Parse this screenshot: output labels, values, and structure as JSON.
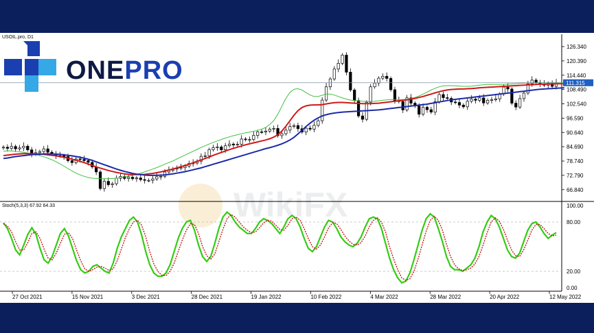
{
  "header": {
    "symbol_label": "USOIL.pro, D1",
    "stoch_label": "Stoch(5,3,3) 67.92 64.33"
  },
  "logo": {
    "text_left": "ONE",
    "text_right": "PRO",
    "icon_name": "onepro-cross-logo-icon"
  },
  "watermark": {
    "text": "WikiFX"
  },
  "colors": {
    "background_band": "#0b1f5c",
    "candle_up": "#ffffff",
    "candle_down": "#000000",
    "ma_fast": "#3fbf3f",
    "ma_mid": "#d01818",
    "ma_slow": "#1a2aa8",
    "stoch_main": "#33cc11",
    "stoch_signal": "#c01a1a",
    "price_badge": "#1f5fbf"
  },
  "chart_data": [
    {
      "type": "candlestick",
      "title": "USOIL.pro, D1",
      "y_ticks": [
        "126.340",
        "120.390",
        "114.440",
        "108.490",
        "102.540",
        "96.590",
        "90.640",
        "84.690",
        "78.740",
        "72.790",
        "66.840"
      ],
      "current_price_label": "111.315",
      "current_price": 111.3,
      "ylim": [
        62.5,
        130.9
      ],
      "x_labels": [
        "27 Oct 2021",
        "15 Nov 2021",
        "3 Dec 2021",
        "28 Dec 2021",
        "19 Jan 2022",
        "10 Feb 2022",
        "4 Mar 2022",
        "28 Mar 2022",
        "20 Apr 2022",
        "12 May 2022"
      ],
      "close": [
        84.5,
        84.0,
        84.8,
        83.8,
        84.2,
        84.9,
        83.4,
        81.6,
        82.2,
        82.7,
        83.8,
        82.4,
        81.7,
        80.9,
        81.0,
        80.6,
        78.9,
        78.1,
        79.6,
        79.4,
        78.9,
        78.2,
        76.3,
        74.2,
        67.3,
        70.3,
        68.9,
        69.3,
        71.6,
        72.3,
        71.5,
        72.0,
        71.4,
        71.7,
        71.0,
        70.7,
        70.7,
        71.3,
        72.2,
        72.4,
        74.2,
        74.9,
        75.5,
        75.7,
        76.0,
        76.6,
        77.7,
        77.9,
        78.7,
        80.7,
        80.9,
        83.5,
        84.3,
        84.6,
        83.4,
        85.1,
        85.8,
        85.4,
        85.7,
        87.9,
        87.7,
        87.7,
        89.4,
        90.9,
        90.8,
        91.2,
        92.0,
        92.3,
        89.3,
        90.1,
        91.6,
        93.1,
        93.5,
        92.2,
        90.8,
        92.4,
        92.0,
        93.6,
        95.5,
        104.1,
        109.6,
        112.9,
        117.0,
        119.4,
        122.8,
        115.7,
        108.3,
        103.9,
        97.5,
        96.1,
        103.2,
        109.6,
        111.2,
        113.2,
        114.0,
        113.1,
        108.4,
        103.9,
        103.5,
        100.0,
        105.0,
        102.8,
        101.6,
        98.2,
        101.1,
        100.1,
        99.1,
        103.4,
        106.4,
        105.1,
        104.8,
        103.3,
        103.1,
        102.0,
        101.3,
        103.6,
        104.5,
        104.0,
        105.0,
        102.9,
        104.0,
        104.2,
        104.6,
        106.6,
        109.5,
        108.7,
        102.8,
        101.2,
        104.7,
        107.0,
        110.9,
        112.4,
        111.3,
        110.8,
        110.3,
        111.1,
        109.8,
        111.3
      ],
      "series": [
        {
          "name": "MA fast",
          "values": [
            82.8,
            83.0,
            82.9,
            82.8,
            82.6,
            82.4,
            82.1,
            81.8,
            81.4,
            81.0,
            80.5,
            79.9,
            79.3,
            78.5,
            77.6,
            76.6,
            75.6,
            74.6,
            73.7,
            73.0,
            72.4,
            71.9,
            71.6,
            71.5,
            71.4,
            71.4,
            71.4,
            71.5,
            71.6,
            71.8,
            72.1,
            72.4,
            72.8,
            73.2,
            73.7,
            74.2,
            74.8,
            75.4,
            76.0,
            76.7,
            77.4,
            78.1,
            78.8,
            79.6,
            80.4,
            81.2,
            82.0,
            82.8,
            83.6,
            84.4,
            85.1,
            85.8,
            86.5,
            87.1,
            87.7,
            88.3,
            88.8,
            89.3,
            89.7,
            90.1,
            90.5,
            90.8,
            91.1,
            91.5,
            92.0,
            92.7,
            93.9,
            95.6,
            98.2,
            101.5,
            104.8,
            107.3,
            108.6,
            108.8,
            108.3,
            107.2,
            106.2,
            105.6,
            105.6,
            106.1,
            106.6,
            106.6,
            106.2,
            105.6,
            105.0,
            104.5,
            104.1,
            103.9,
            103.7,
            103.6,
            103.5,
            103.5,
            103.6,
            103.8,
            104.0,
            104.2,
            104.3,
            104.3,
            104.3,
            104.3,
            104.4,
            104.7,
            105.2,
            105.8,
            106.6,
            107.4,
            108.3,
            109.0,
            109.6,
            110.0,
            110.1,
            110.1,
            110.0,
            109.9,
            109.8,
            109.8,
            109.9,
            110.1,
            110.3,
            110.5,
            110.6,
            110.6,
            110.6,
            110.6,
            110.6,
            110.7,
            110.8,
            110.9,
            111.0,
            111.1,
            111.2,
            111.3,
            111.3,
            111.3,
            111.3,
            111.3,
            111.3,
            111.3,
            111.3,
            111.3
          ]
        },
        {
          "name": "MA mid",
          "values": [
            81.0,
            81.2,
            81.4,
            81.6,
            81.7,
            81.8,
            81.8,
            81.8,
            81.7,
            81.6,
            81.5,
            81.3,
            81.1,
            80.9,
            80.6,
            80.3,
            79.9,
            79.5,
            79.1,
            78.6,
            78.1,
            77.5,
            76.9,
            76.3,
            75.8,
            75.3,
            74.8,
            74.4,
            74.0,
            73.7,
            73.4,
            73.2,
            73.1,
            73.1,
            73.1,
            73.2,
            73.4,
            73.6,
            73.9,
            74.2,
            74.6,
            75.0,
            75.4,
            75.9,
            76.4,
            76.9,
            77.4,
            78.0,
            78.6,
            79.2,
            79.8,
            80.4,
            81.1,
            81.7,
            82.3,
            82.9,
            83.5,
            84.0,
            84.5,
            85.0,
            85.5,
            85.9,
            86.3,
            86.7,
            87.1,
            87.5,
            88.0,
            88.7,
            89.7,
            91.2,
            93.2,
            95.5,
            97.8,
            99.7,
            101.0,
            101.7,
            102.0,
            102.1,
            102.1,
            102.2,
            102.5,
            102.8,
            103.0,
            103.1,
            103.1,
            103.0,
            102.9,
            102.8,
            102.7,
            102.6,
            102.6,
            102.6,
            102.7,
            102.8,
            103.0,
            103.2,
            103.4,
            103.6,
            103.8,
            104.0,
            104.2,
            104.5,
            104.8,
            105.2,
            105.6,
            106.1,
            106.6,
            107.1,
            107.6,
            108.0,
            108.3,
            108.5,
            108.6,
            108.7,
            108.7,
            108.8,
            108.9,
            109.0,
            109.2,
            109.3,
            109.4,
            109.5,
            109.6,
            109.7,
            109.8,
            109.9,
            110.0,
            110.1,
            110.2,
            110.3,
            110.4,
            110.5,
            110.6,
            110.7,
            110.7,
            110.8,
            110.8,
            110.9,
            110.9,
            110.9
          ]
        },
        {
          "name": "MA slow",
          "values": [
            79.8,
            80.0,
            80.3,
            80.6,
            80.8,
            81.0,
            81.2,
            81.4,
            81.5,
            81.6,
            81.7,
            81.7,
            81.7,
            81.6,
            81.5,
            81.3,
            81.1,
            80.9,
            80.6,
            80.3,
            79.9,
            79.5,
            79.0,
            78.4,
            77.8,
            77.2,
            76.6,
            76.0,
            75.4,
            74.9,
            74.4,
            74.0,
            73.6,
            73.3,
            73.1,
            72.9,
            72.8,
            72.8,
            72.8,
            72.9,
            73.0,
            73.2,
            73.4,
            73.7,
            74.0,
            74.3,
            74.7,
            75.1,
            75.5,
            75.9,
            76.4,
            76.9,
            77.4,
            77.9,
            78.4,
            78.9,
            79.4,
            79.9,
            80.4,
            80.9,
            81.4,
            81.9,
            82.4,
            82.9,
            83.4,
            83.9,
            84.3,
            84.8,
            85.3,
            85.9,
            86.6,
            87.5,
            88.6,
            90.0,
            91.5,
            93.1,
            94.5,
            95.7,
            96.7,
            97.5,
            98.0,
            98.4,
            98.7,
            98.9,
            99.1,
            99.2,
            99.3,
            99.4,
            99.5,
            99.6,
            99.7,
            99.8,
            99.9,
            100.0,
            100.2,
            100.4,
            100.6,
            100.8,
            101.0,
            101.2,
            101.4,
            101.6,
            101.8,
            102.0,
            102.2,
            102.4,
            102.7,
            103.0,
            103.3,
            103.6,
            103.9,
            104.2,
            104.4,
            104.6,
            104.8,
            105.0,
            105.2,
            105.4,
            105.6,
            105.8,
            106.0,
            106.2,
            106.4,
            106.6,
            106.8,
            107.0,
            107.2,
            107.4,
            107.6,
            107.8,
            108.0,
            108.2,
            108.4,
            108.6,
            108.7,
            108.8,
            108.9,
            109.0,
            109.1,
            109.2
          ]
        }
      ]
    },
    {
      "type": "line",
      "title": "Stoch(5,3,3) 67.92 64.33",
      "y_ticks": [
        "100.00",
        "80.00",
        "20.00",
        "0.00"
      ],
      "ylim": [
        0,
        100
      ],
      "series": [
        {
          "name": "main",
          "values": [
            79,
            72,
            60,
            46,
            40,
            52,
            65,
            73,
            65,
            48,
            34,
            30,
            38,
            52,
            66,
            72,
            63,
            48,
            33,
            22,
            18,
            20,
            26,
            28,
            24,
            20,
            18,
            30,
            48,
            62,
            72,
            82,
            86,
            80,
            64,
            44,
            28,
            18,
            14,
            14,
            18,
            28,
            44,
            60,
            72,
            80,
            82,
            70,
            52,
            38,
            32,
            38,
            54,
            72,
            86,
            92,
            88,
            80,
            74,
            70,
            66,
            66,
            72,
            80,
            84,
            82,
            78,
            72,
            66,
            74,
            84,
            88,
            84,
            74,
            60,
            48,
            44,
            50,
            62,
            74,
            82,
            80,
            72,
            62,
            56,
            52,
            50,
            54,
            62,
            74,
            84,
            86,
            84,
            72,
            54,
            36,
            22,
            12,
            6,
            8,
            18,
            34,
            52,
            70,
            84,
            90,
            86,
            72,
            56,
            38,
            26,
            22,
            22,
            20,
            24,
            28,
            36,
            50,
            68,
            80,
            88,
            84,
            74,
            60,
            46,
            38,
            36,
            42,
            56,
            70,
            78,
            80,
            74,
            66,
            60,
            64,
            67
          ]
        },
        {
          "name": "signal",
          "values": [
            78,
            75,
            68,
            56,
            46,
            46,
            55,
            66,
            68,
            60,
            47,
            36,
            34,
            42,
            54,
            65,
            67,
            60,
            46,
            33,
            23,
            20,
            22,
            25,
            26,
            24,
            21,
            23,
            33,
            47,
            61,
            72,
            80,
            82,
            76,
            62,
            44,
            29,
            20,
            15,
            15,
            20,
            30,
            44,
            58,
            70,
            78,
            77,
            66,
            50,
            39,
            35,
            41,
            56,
            71,
            84,
            89,
            86,
            80,
            74,
            70,
            67,
            68,
            73,
            79,
            82,
            81,
            76,
            71,
            70,
            76,
            84,
            86,
            82,
            72,
            60,
            50,
            47,
            52,
            62,
            73,
            79,
            78,
            71,
            63,
            57,
            53,
            52,
            55,
            63,
            74,
            82,
            85,
            80,
            68,
            50,
            35,
            22,
            12,
            9,
            11,
            20,
            35,
            52,
            69,
            82,
            87,
            82,
            70,
            53,
            38,
            28,
            23,
            21,
            22,
            24,
            29,
            38,
            52,
            67,
            80,
            85,
            81,
            71,
            58,
            46,
            39,
            38,
            46,
            58,
            70,
            77,
            77,
            72,
            66,
            63,
            64
          ]
        }
      ]
    }
  ]
}
